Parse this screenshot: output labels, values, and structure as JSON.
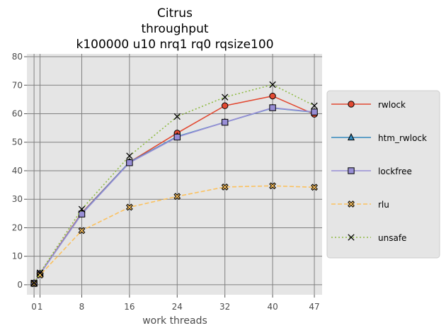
{
  "chart_data": {
    "type": "line",
    "title_lines": [
      "Citrus",
      "throughput",
      "k100000 u10 nrq1 rq0 rqsize100"
    ],
    "xlabel": "work threads",
    "ylabel": "",
    "x": [
      0,
      1,
      8,
      16,
      24,
      32,
      40,
      47
    ],
    "x_tick_labels": [
      "0",
      "1",
      "8",
      "16",
      "24",
      "32",
      "40",
      "47"
    ],
    "xlim": [
      -1.2,
      48.3
    ],
    "ylim": [
      -3.5,
      81
    ],
    "y_ticks": [
      0,
      10,
      20,
      30,
      40,
      50,
      60,
      70,
      80
    ],
    "grid": true,
    "legend_position": "right-outside",
    "series": [
      {
        "name": "rwlock",
        "color": "#E24A33",
        "dash": "solid",
        "marker": "circle",
        "marker_fill": "#E24A33",
        "values": [
          0.5,
          3.9,
          25.2,
          43.0,
          53.2,
          62.8,
          66.2,
          59.8
        ]
      },
      {
        "name": "htm_rwlock",
        "color": "#348ABD",
        "dash": "solid",
        "marker": "triangle",
        "marker_fill": "#348ABD",
        "values": [
          0.5,
          3.8,
          25.0,
          43.0,
          52.0,
          57.0,
          62.0,
          60.5
        ]
      },
      {
        "name": "lockfree",
        "color": "#988ED5",
        "dash": "solid",
        "marker": "square",
        "marker_fill": "#988ED5",
        "values": [
          0.5,
          3.8,
          24.8,
          42.8,
          51.8,
          57.0,
          62.1,
          60.6
        ]
      },
      {
        "name": "rlu",
        "color": "#FBC15E",
        "dash": "dashed",
        "marker": "xfilled",
        "marker_fill": "#FBC15E",
        "values": [
          0.4,
          3.4,
          19.0,
          27.2,
          31.0,
          34.3,
          34.7,
          34.2
        ]
      },
      {
        "name": "unsafe",
        "color": "#8EBA42",
        "dash": "dotted",
        "marker": "x",
        "marker_fill": "none",
        "values": [
          0.6,
          4.2,
          26.5,
          45.2,
          59.0,
          65.8,
          70.2,
          62.8
        ]
      }
    ]
  }
}
